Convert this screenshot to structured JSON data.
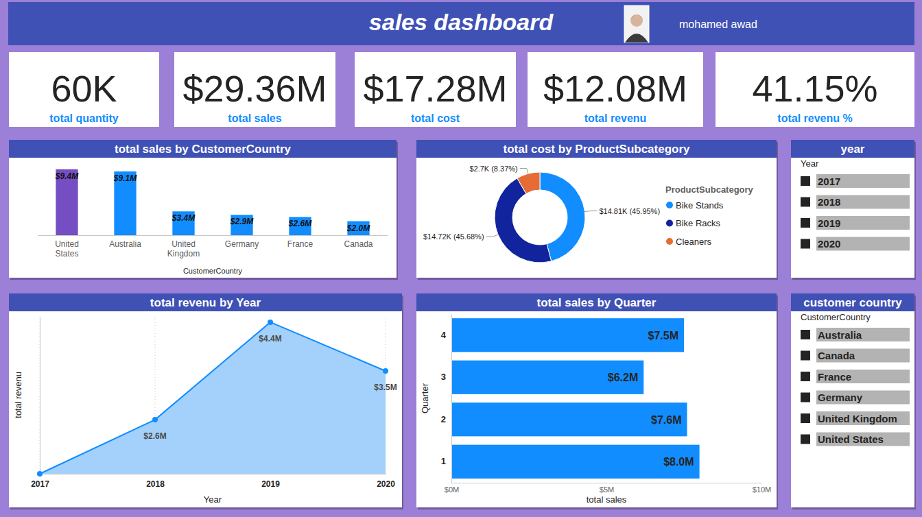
{
  "header": {
    "title": "sales dashboard",
    "author": "mohamed awad"
  },
  "kpis": [
    {
      "value": "60K",
      "label": "total quantity"
    },
    {
      "value": "$29.36M",
      "label": "total sales"
    },
    {
      "value": "$17.28M",
      "label": "total cost"
    },
    {
      "value": "$12.08M",
      "label": "total revenu"
    },
    {
      "value": "41.15%",
      "label": "total revenu %"
    }
  ],
  "chart_data": [
    {
      "type": "bar",
      "title": "total sales by CustomerCountry",
      "xlabel": "CustomerCountry",
      "categories": [
        "United States",
        "Australia",
        "United Kingdom",
        "Germany",
        "France",
        "Canada"
      ],
      "values": [
        9.4,
        9.1,
        3.4,
        2.9,
        2.6,
        2.0
      ],
      "value_labels": [
        "$9.4M",
        "$9.1M",
        "$3.4M",
        "$2.9M",
        "$2.6M",
        "$2.0M"
      ],
      "colors": [
        "#744ec2",
        "#118dff",
        "#118dff",
        "#118dff",
        "#118dff",
        "#118dff"
      ],
      "data_labels": true,
      "tick_labels": "x"
    },
    {
      "type": "donut",
      "title": "total cost by ProductSubcategory",
      "legend_title": "ProductSubcategory",
      "categories": [
        "Bike Stands",
        "Bike Racks",
        "Cleaners"
      ],
      "values": [
        14.81,
        14.72,
        2.7
      ],
      "value_labels": [
        "$14.81K (45.95%)",
        "$14.72K (45.68%)",
        "$2.7K (8.37%)"
      ],
      "colors": [
        "#118dff",
        "#12239e",
        "#e66c37"
      ],
      "legend": "right",
      "data_labels": true
    },
    {
      "type": "area",
      "title": "total revenu by Year",
      "xlabel": "Year",
      "ylabel": "total revenu",
      "categories": [
        "2017",
        "2018",
        "2019",
        "2020"
      ],
      "values": [
        1.6,
        2.6,
        4.4,
        3.5
      ],
      "value_labels": [
        null,
        "$2.6M",
        "$4.4M",
        "$3.5M"
      ],
      "ylim": [
        1.6,
        4.5
      ],
      "color": "#118dff",
      "marker": "circle",
      "grid": true,
      "data_labels": true,
      "tick_labels": "x"
    },
    {
      "type": "bar",
      "orientation": "horizontal",
      "title": "total sales by Quarter",
      "xlabel": "total sales",
      "ylabel": "Quarter",
      "categories": [
        "4",
        "3",
        "2",
        "1"
      ],
      "values": [
        7.5,
        6.2,
        7.6,
        8.0
      ],
      "value_labels": [
        "$7.5M",
        "$6.2M",
        "$7.6M",
        "$8.0M"
      ],
      "xlim": [
        0,
        10
      ],
      "xticks": [
        {
          "value": 0,
          "label": "$0M"
        },
        {
          "value": 5,
          "label": "$5M"
        },
        {
          "value": 10,
          "label": "$10M"
        }
      ],
      "color": "#118dff",
      "grid": false,
      "data_labels": true
    }
  ],
  "slicers": [
    {
      "title": "year",
      "field": "Year",
      "items": [
        "2017",
        "2018",
        "2019",
        "2020"
      ]
    },
    {
      "title": "customer country",
      "field": "CustomerCountry",
      "items": [
        "Australia",
        "Canada",
        "France",
        "Germany",
        "United Kingdom",
        "United States"
      ]
    }
  ]
}
